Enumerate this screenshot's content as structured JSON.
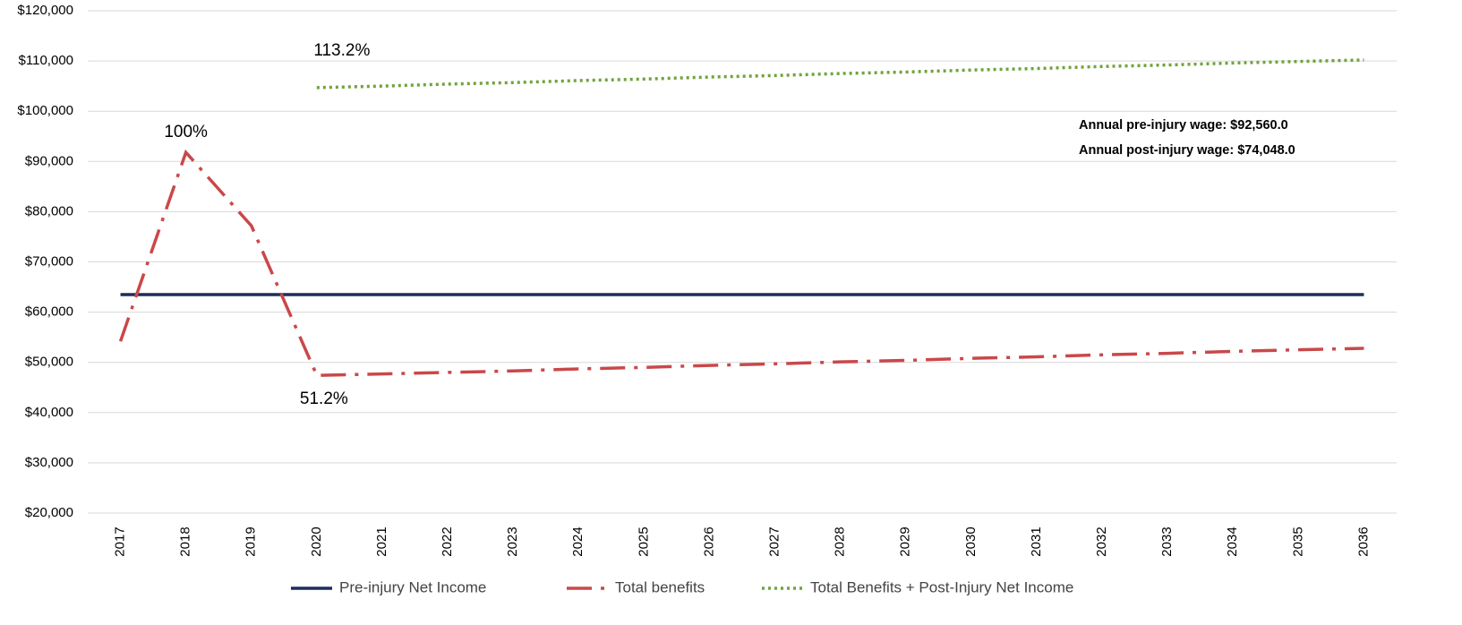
{
  "chart_data": {
    "type": "line",
    "categories": [
      "2017",
      "2018",
      "2019",
      "2020",
      "2021",
      "2022",
      "2023",
      "2024",
      "2025",
      "2026",
      "2027",
      "2028",
      "2029",
      "2030",
      "2031",
      "2032",
      "2033",
      "2034",
      "2035",
      "2036"
    ],
    "series": [
      {
        "name": "Pre-injury Net Income",
        "color": "#1f2d5a",
        "values": [
          63500,
          63500,
          63500,
          63500,
          63500,
          63500,
          63500,
          63500,
          63500,
          63500,
          63500,
          63500,
          63500,
          63500,
          63500,
          63500,
          63500,
          63500,
          63500,
          63500
        ]
      },
      {
        "name": "Total benefits",
        "color": "#c9484a",
        "values": [
          54200,
          91800,
          77200,
          47400,
          47700,
          48000,
          48300,
          48700,
          49000,
          49400,
          49700,
          50100,
          50400,
          50800,
          51100,
          51500,
          51800,
          52200,
          52500,
          52800
        ]
      },
      {
        "name": "Total Benefits + Post-Injury Net Income",
        "color": "#70a33a",
        "values": [
          null,
          null,
          null,
          104700,
          105000,
          105400,
          105700,
          106100,
          106400,
          106800,
          107100,
          107500,
          107800,
          108200,
          108500,
          108900,
          109200,
          109600,
          109900,
          110200
        ]
      }
    ],
    "ylim": [
      20000,
      120000
    ],
    "yticks": [
      {
        "value": 20000,
        "label": "$20,000"
      },
      {
        "value": 30000,
        "label": "$30,000"
      },
      {
        "value": 40000,
        "label": "$40,000"
      },
      {
        "value": 50000,
        "label": "$50,000"
      },
      {
        "value": 60000,
        "label": "$60,000"
      },
      {
        "value": 70000,
        "label": "$70,000"
      },
      {
        "value": 80000,
        "label": "$80,000"
      },
      {
        "value": 90000,
        "label": "$90,000"
      },
      {
        "value": 100000,
        "label": "$100,000"
      },
      {
        "value": 110000,
        "label": "$110,000"
      },
      {
        "value": 120000,
        "label": "$120,000"
      }
    ],
    "grid": true,
    "legend": "bottom",
    "annotations": [
      "113.2%",
      "100%",
      "51.2%"
    ],
    "notes": [
      "Annual pre-injury wage: $92,560.0",
      "Annual post-injury wage: $74,048.0"
    ]
  }
}
